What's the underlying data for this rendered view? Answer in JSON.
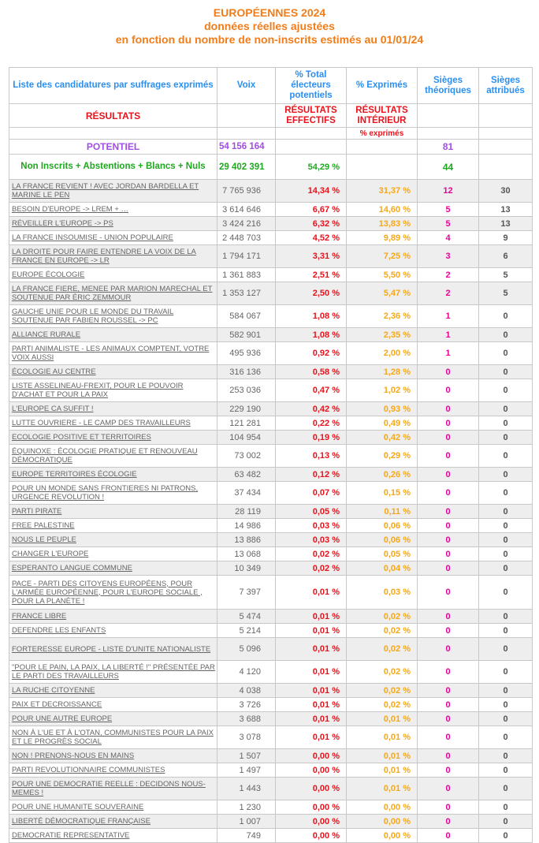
{
  "title": {
    "line1": "EUROPÉENNES 2024",
    "line2": "données réelles ajustées",
    "line3": "en fonction du nombre de non-inscrits estimés au 01/01/24"
  },
  "headers": {
    "liste": "Liste des candidatures par suffrages exprimés",
    "voix": "Voix",
    "total": "% Total électeurs potentiels",
    "exprimes": "% Exprimés",
    "sieges_theo": "Sièges théoriques",
    "sieges_attr": "Sièges attribués"
  },
  "results_row": {
    "label": "RÉSULTATS",
    "effectifs": "RÉSULTATS EFFECTIFS",
    "interieur": "RÉSULTATS INTÉRIEUR",
    "sub": "% exprimés"
  },
  "potentiel": {
    "label": "POTENTIEL",
    "voix": "54 156 164",
    "seats": "81"
  },
  "non_inscrits": {
    "label": "Non Inscrits + Abstentions + Blancs + Nuls",
    "voix": "29 402 391",
    "pct": "54,29 %",
    "seats": "44"
  },
  "rows": [
    {
      "name": "LA FRANCE REVIENT ! AVEC JORDAN BARDELLA ET MARINE LE PEN",
      "voix": "7 765 936",
      "pt": "14,34 %",
      "pe": "31,37 %",
      "st": "12",
      "sa": "30"
    },
    {
      "name": "BESOIN D'EUROPE -> LREM + …",
      "voix": "3 614 646",
      "pt": "6,67 %",
      "pe": "14,60 %",
      "st": "5",
      "sa": "13"
    },
    {
      "name": "RÉVEILLER L'EUROPE -> PS",
      "voix": "3 424 216",
      "pt": "6,32 %",
      "pe": "13,83 %",
      "st": "5",
      "sa": "13"
    },
    {
      "name": "LA FRANCE INSOUMISE - UNION POPULAIRE",
      "voix": "2 448 703",
      "pt": "4,52 %",
      "pe": "9,89 %",
      "st": "4",
      "sa": "9"
    },
    {
      "name": "LA DROITE POUR FAIRE ENTENDRE LA VOIX DE LA FRANCE EN EUROPE -> LR",
      "voix": "1 794 171",
      "pt": "3,31 %",
      "pe": "7,25 %",
      "st": "3",
      "sa": "6"
    },
    {
      "name": "EUROPE ÉCOLOGIE",
      "voix": "1 361 883",
      "pt": "2,51 %",
      "pe": "5,50 %",
      "st": "2",
      "sa": "5"
    },
    {
      "name": "LA FRANCE FIERE, MENEE PAR MARION MARECHAL ET SOUTENUE PAR ÉRIC ZEMMOUR",
      "voix": "1 353 127",
      "pt": "2,50 %",
      "pe": "5,47 %",
      "st": "2",
      "sa": "5"
    },
    {
      "name": "GAUCHE UNIE POUR LE MONDE DU TRAVAIL SOUTENUE PAR FABIEN ROUSSEL -> PC",
      "voix": "584 067",
      "pt": "1,08 %",
      "pe": "2,36 %",
      "st": "1",
      "sa": "0"
    },
    {
      "name": "ALLIANCE RURALE",
      "voix": "582 901",
      "pt": "1,08 %",
      "pe": "2,35 %",
      "st": "1",
      "sa": "0"
    },
    {
      "name": "PARTI ANIMALISTE - LES ANIMAUX COMPTENT, VOTRE VOIX AUSSI",
      "voix": "495 936",
      "pt": "0,92 %",
      "pe": "2,00 %",
      "st": "1",
      "sa": "0"
    },
    {
      "name": "ÉCOLOGIE AU CENTRE",
      "voix": "316 136",
      "pt": "0,58 %",
      "pe": "1,28 %",
      "st": "0",
      "sa": "0"
    },
    {
      "name": "LISTE ASSELINEAU-FREXIT, POUR LE POUVOIR D'ACHAT ET POUR LA PAIX",
      "voix": "253 036",
      "pt": "0,47 %",
      "pe": "1,02 %",
      "st": "0",
      "sa": "0"
    },
    {
      "name": "L'EUROPE CA SUFFIT !",
      "voix": "229 190",
      "pt": "0,42 %",
      "pe": "0,93 %",
      "st": "0",
      "sa": "0"
    },
    {
      "name": "LUTTE OUVRIERE - LE CAMP DES TRAVAILLEURS",
      "voix": "121 281",
      "pt": "0,22 %",
      "pe": "0,49 %",
      "st": "0",
      "sa": "0"
    },
    {
      "name": "ECOLOGIE POSITIVE ET TERRITOIRES",
      "voix": "104 954",
      "pt": "0,19 %",
      "pe": "0,42 %",
      "st": "0",
      "sa": "0"
    },
    {
      "name": "ÉQUINOXE : ÉCOLOGIE PRATIQUE ET RENOUVEAU DÉMOCRATIQUE",
      "voix": "73 002",
      "pt": "0,13 %",
      "pe": "0,29 %",
      "st": "0",
      "sa": "0"
    },
    {
      "name": "EUROPE TERRITOIRES ÉCOLOGIE",
      "voix": "63 482",
      "pt": "0,12 %",
      "pe": "0,26 %",
      "st": "0",
      "sa": "0"
    },
    {
      "name": "POUR UN MONDE SANS FRONTIERES NI PATRONS, URGENCE REVOLUTION !",
      "voix": "37 434",
      "pt": "0,07 %",
      "pe": "0,15 %",
      "st": "0",
      "sa": "0"
    },
    {
      "name": "PARTI PIRATE",
      "voix": "28 119",
      "pt": "0,05 %",
      "pe": "0,11 %",
      "st": "0",
      "sa": "0"
    },
    {
      "name": "FREE PALESTINE",
      "voix": "14 986",
      "pt": "0,03 %",
      "pe": "0,06 %",
      "st": "0",
      "sa": "0"
    },
    {
      "name": "NOUS LE PEUPLE",
      "voix": "13 886",
      "pt": "0,03 %",
      "pe": "0,06 %",
      "st": "0",
      "sa": "0"
    },
    {
      "name": "CHANGER L'EUROPE",
      "voix": "13 068",
      "pt": "0,02 %",
      "pe": "0,05 %",
      "st": "0",
      "sa": "0"
    },
    {
      "name": "ESPERANTO LANGUE COMMUNE",
      "voix": "10 349",
      "pt": "0,02 %",
      "pe": "0,04 %",
      "st": "0",
      "sa": "0"
    },
    {
      "name": "PACE - PARTI DES CITOYENS EUROPÉENS, POUR L'ARMÉE EUROPÉENNE, POUR L'EUROPE SOCIALE , POUR LA PLANÈTE !",
      "voix": "7 397",
      "pt": "0,01 %",
      "pe": "0,03 %",
      "st": "0",
      "sa": "0"
    },
    {
      "name": "FRANCE LIBRE",
      "voix": "5 474",
      "pt": "0,01 %",
      "pe": "0,02 %",
      "st": "0",
      "sa": "0"
    },
    {
      "name": "DEFENDRE LES ENFANTS",
      "voix": "5 214",
      "pt": "0,01 %",
      "pe": "0,02 %",
      "st": "0",
      "sa": "0"
    },
    {
      "name": "FORTERESSE EUROPE - LISTE D'UNITE NATIONALISTE",
      "voix": "5 096",
      "pt": "0,01 %",
      "pe": "0,02 %",
      "st": "0",
      "sa": "0"
    },
    {
      "name": "\"POUR LE PAIN, LA PAIX, LA LIBERTÉ !\" PRÉSENTÉE PAR LE PARTI DES TRAVAILLEURS",
      "voix": "4 120",
      "pt": "0,01 %",
      "pe": "0,02 %",
      "st": "0",
      "sa": "0"
    },
    {
      "name": "LA RUCHE CITOYENNE",
      "voix": "4 038",
      "pt": "0,01 %",
      "pe": "0,02 %",
      "st": "0",
      "sa": "0"
    },
    {
      "name": "PAIX ET DECROISSANCE",
      "voix": "3 726",
      "pt": "0,01 %",
      "pe": "0,02 %",
      "st": "0",
      "sa": "0"
    },
    {
      "name": "POUR UNE AUTRE EUROPE",
      "voix": "3 688",
      "pt": "0,01 %",
      "pe": "0,01 %",
      "st": "0",
      "sa": "0"
    },
    {
      "name": "NON À L'UE ET À L'OTAN, COMMUNISTES POUR LA PAIX ET LE PROGRÈS SOCIAL",
      "voix": "3 078",
      "pt": "0,01 %",
      "pe": "0,01 %",
      "st": "0",
      "sa": "0"
    },
    {
      "name": "NON ! PRENONS-NOUS EN MAINS",
      "voix": "1 507",
      "pt": "0,00 %",
      "pe": "0,01 %",
      "st": "0",
      "sa": "0"
    },
    {
      "name": "PARTI REVOLUTIONNAIRE COMMUNISTES",
      "voix": "1 497",
      "pt": "0,00 %",
      "pe": "0,01 %",
      "st": "0",
      "sa": "0"
    },
    {
      "name": "POUR UNE DEMOCRATIE REELLE : DECIDONS NOUS-MEMES !",
      "voix": "1 443",
      "pt": "0,00 %",
      "pe": "0,01 %",
      "st": "0",
      "sa": "0"
    },
    {
      "name": "POUR UNE HUMANITE SOUVERAINE",
      "voix": "1 230",
      "pt": "0,00 %",
      "pe": "0,00 %",
      "st": "0",
      "sa": "0"
    },
    {
      "name": "LIBERTÉ DÉMOCRATIQUE FRANÇAISE",
      "voix": "1 007",
      "pt": "0,00 %",
      "pe": "0,00 %",
      "st": "0",
      "sa": "0"
    },
    {
      "name": "DEMOCRATIE REPRESENTATIVE",
      "voix": "749",
      "pt": "0,00 %",
      "pe": "0,00 %",
      "st": "0",
      "sa": "0"
    }
  ]
}
